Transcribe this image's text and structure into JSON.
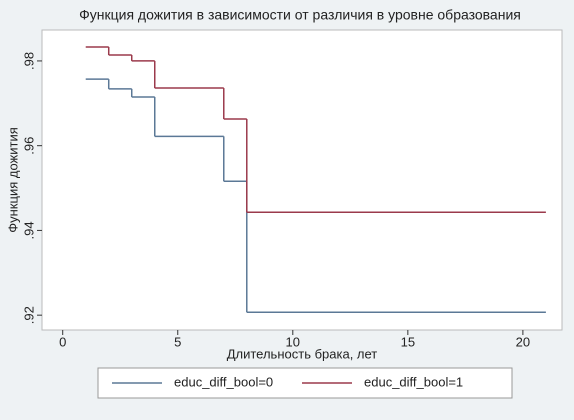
{
  "chart_data": {
    "type": "step",
    "title": "Функция дожития в зависимости от различия в уровне образования",
    "x_label": "Длительность брака, лет",
    "y_label": "Функция дожития",
    "x": [
      1,
      2,
      3,
      4,
      7,
      8,
      21
    ],
    "series": [
      {
        "name": "educ_diff_bool=0",
        "color": "#5b7896",
        "values": [
          0.9757,
          0.9734,
          0.9715,
          0.9622,
          0.9516,
          0.9207,
          0.9207
        ]
      },
      {
        "name": "educ_diff_bool=1",
        "color": "#9b3a4c",
        "values": [
          0.9833,
          0.9814,
          0.98,
          0.9736,
          0.9663,
          0.9443,
          0.9443
        ]
      }
    ],
    "xlim": [
      -0.9,
      21.7
    ],
    "ylim": [
      0.9165,
      0.9873
    ],
    "xticks": [
      0,
      5,
      10,
      15,
      20
    ],
    "yticks": [
      {
        "value": 0.92,
        "label": ".92"
      },
      {
        "value": 0.94,
        "label": ".94"
      },
      {
        "value": 0.96,
        "label": ".96"
      },
      {
        "value": 0.98,
        "label": ".98"
      }
    ],
    "legend": "bottom"
  }
}
